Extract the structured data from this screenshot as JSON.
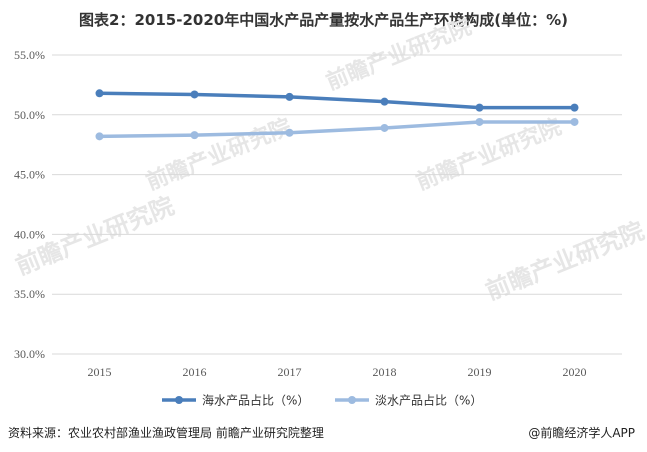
{
  "title": "图表2：2015-2020年中国水产品产量按水产品生产环境构成(单位：%)",
  "source": "资料来源：农业农村部渔业渔政管理局 前瞻产业研究院整理",
  "brand": "@前瞻经济学人APP",
  "watermark": "前瞻产业研究院",
  "chart_data": {
    "type": "line",
    "title": "图表2：2015-2020年中国水产品产量按水产品生产环境构成(单位：%)",
    "xlabel": "",
    "ylabel": "",
    "categories": [
      "2015",
      "2016",
      "2017",
      "2018",
      "2019",
      "2020"
    ],
    "y_ticks": [
      "30.0%",
      "35.0%",
      "40.0%",
      "45.0%",
      "50.0%",
      "55.0%"
    ],
    "ylim": [
      30,
      55
    ],
    "grid": true,
    "legend_position": "bottom",
    "series": [
      {
        "name": "海水产品占比（%）",
        "color": "#4a7ebb",
        "values": [
          51.8,
          51.7,
          51.5,
          51.1,
          50.6,
          50.6
        ]
      },
      {
        "name": "淡水产品占比（%）",
        "color": "#9dbbe0",
        "values": [
          48.2,
          48.3,
          48.5,
          48.9,
          49.4,
          49.4
        ]
      }
    ]
  }
}
